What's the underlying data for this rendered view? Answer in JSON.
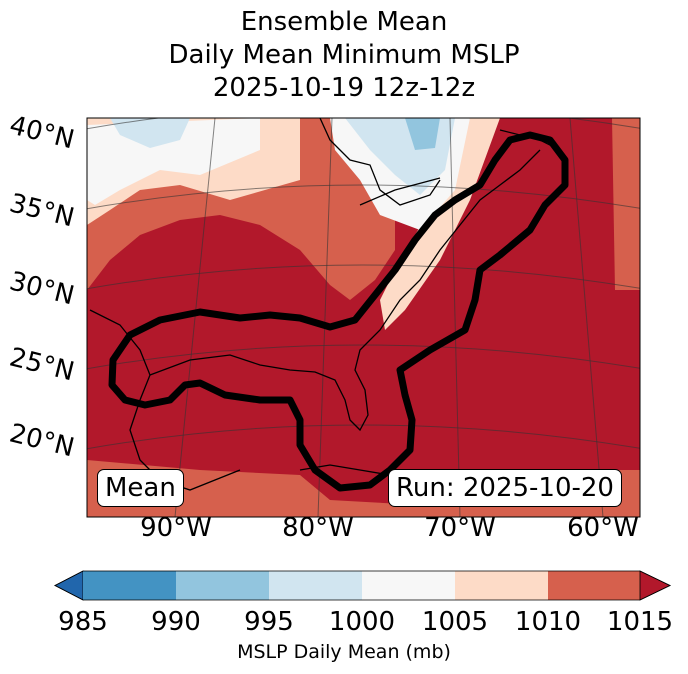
{
  "title": [
    "Ensemble Mean",
    "Daily Mean Minimum MSLP",
    "2025-10-19 12z-12z"
  ],
  "lat_labels": [
    "40°N",
    "35°N",
    "30°N",
    "25°N",
    "20°N"
  ],
  "lon_labels": [
    "90°W",
    "80°W",
    "70°W",
    "60°W"
  ],
  "left_box": "Mean",
  "right_box": "Run: 2025-10-20",
  "colorbar": {
    "ticks": [
      "985",
      "990",
      "995",
      "1000",
      "1005",
      "1010",
      "1015"
    ],
    "label": "MSLP Daily Mean (mb)",
    "colors": [
      "#2166ac",
      "#4393c3",
      "#92c5de",
      "#d1e5f0",
      "#f7f7f7",
      "#fddbc7",
      "#d6604d",
      "#b2182b"
    ]
  }
}
